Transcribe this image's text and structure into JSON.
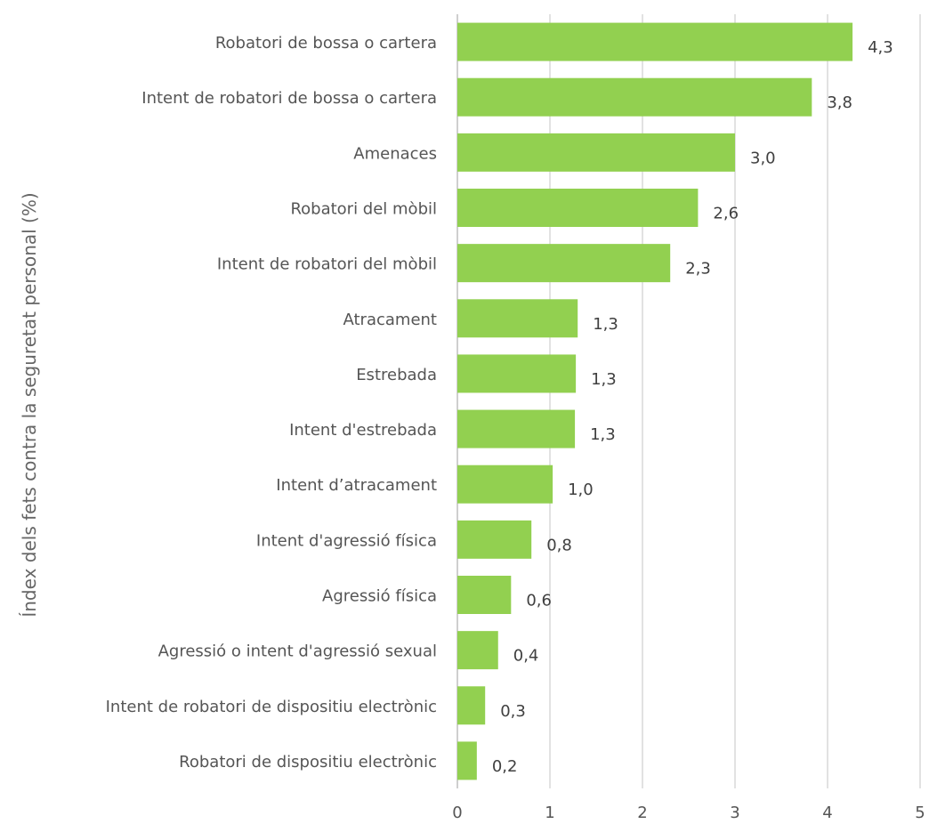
{
  "chart_data": {
    "type": "bar",
    "orientation": "horizontal",
    "categories": [
      "Robatori de bossa o cartera",
      "Intent de robatori de bossa o cartera",
      "Amenaces",
      "Robatori del mòbil",
      "Intent de robatori del mòbil",
      "Atracament",
      "Estrebada",
      "Intent d'estrebada",
      "Intent d’atracament",
      "Intent d'agressió física",
      "Agressió física",
      "Agressió o intent d'agressió  sexual",
      "Intent de robatori de dispositiu electrònic",
      "Robatori de dispositiu electrònic"
    ],
    "values": [
      4.27,
      3.83,
      3.0,
      2.6,
      2.3,
      1.3,
      1.28,
      1.27,
      1.03,
      0.8,
      0.58,
      0.44,
      0.3,
      0.21
    ],
    "value_labels": [
      "4,3",
      "3,8",
      "3,0",
      "2,6",
      "2,3",
      "1,3",
      "1,3",
      "1,3",
      "1,0",
      "0,8",
      "0,6",
      "0,4",
      "0,3",
      "0,2"
    ],
    "xlim": [
      0,
      5
    ],
    "xticks": [
      0,
      1,
      2,
      3,
      4,
      5
    ],
    "xtick_labels": [
      "0",
      "1",
      "2",
      "3",
      "4",
      "5"
    ],
    "ylabel": "Índex dels fets contra la seguretat personal (%)",
    "xlabel": "",
    "title": "",
    "grid": true,
    "legend": "none",
    "bar_color": "#92d050"
  }
}
